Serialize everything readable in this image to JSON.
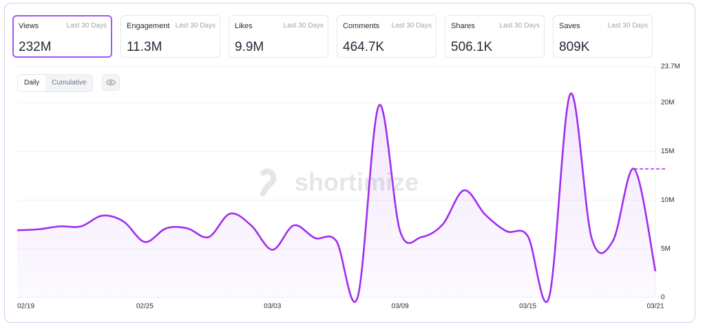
{
  "metrics": [
    {
      "label": "Views",
      "period": "Last 30 Days",
      "value": "232M"
    },
    {
      "label": "Engagement",
      "period": "Last 30 Days",
      "value": "11.3M"
    },
    {
      "label": "Likes",
      "period": "Last 30 Days",
      "value": "9.9M"
    },
    {
      "label": "Comments",
      "period": "Last 30 Days",
      "value": "464.7K"
    },
    {
      "label": "Shares",
      "period": "Last 30 Days",
      "value": "506.1K"
    },
    {
      "label": "Saves",
      "period": "Last 30 Days",
      "value": "809K"
    }
  ],
  "toggle": [
    "Daily",
    "Cumulative"
  ],
  "watermark": "shortimize",
  "chart_data": {
    "type": "line",
    "categories": [
      "02/19",
      null,
      null,
      null,
      null,
      null,
      "02/25",
      null,
      null,
      null,
      null,
      null,
      "03/03",
      null,
      null,
      null,
      null,
      null,
      "03/09",
      null,
      null,
      null,
      null,
      null,
      "03/15",
      null,
      null,
      null,
      null,
      null,
      "03/21"
    ],
    "values": [
      6900000,
      7000000,
      7300000,
      7300000,
      8400000,
      7800000,
      5700000,
      7100000,
      7100000,
      6200000,
      8600000,
      7400000,
      4900000,
      7400000,
      6100000,
      5800000,
      0,
      19700000,
      6800000,
      6200000,
      7500000,
      11000000,
      8500000,
      6800000,
      6300000,
      0,
      20900000,
      6100000,
      5800000,
      13200000,
      2700000
    ],
    "color": "#a02cf0",
    "ylim": [
      0,
      23700000
    ],
    "yticks": [
      0,
      {
        "value": 5000000,
        "label": "5M"
      },
      {
        "value": 10000000,
        "label": "10M"
      },
      {
        "value": 15000000,
        "label": "15M"
      },
      {
        "value": 20000000,
        "label": "20M"
      },
      {
        "value": 23700000,
        "label": "23.7M"
      }
    ],
    "grid": true
  }
}
